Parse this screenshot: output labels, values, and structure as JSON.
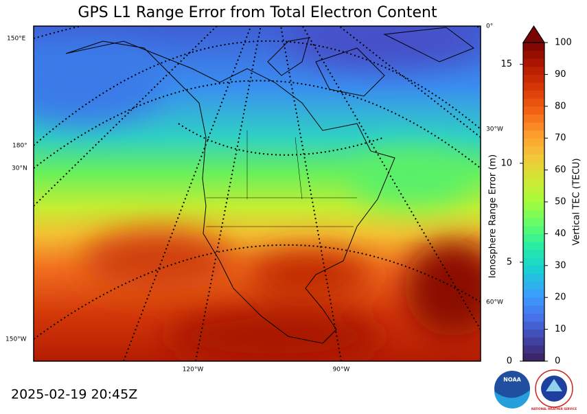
{
  "chart_data": {
    "type": "map",
    "title": "GPS L1 Range Error from Total Electron Content",
    "timestamp": "2025-02-19 20:45Z",
    "graticule_labels": [
      "150°E",
      "180°",
      "30°N",
      "150°W",
      "120°W",
      "90°W",
      "0°",
      "30°W",
      "60°W"
    ],
    "colorbar": {
      "label": "Vertical TEC (TECU)",
      "ylim": [
        0,
        100
      ],
      "yticks": [
        0,
        10,
        20,
        30,
        40,
        50,
        60,
        70,
        80,
        90,
        100
      ],
      "colormap": [
        "#3b1f5b",
        "#4145ab",
        "#4675ed",
        "#39a2fc",
        "#1bcfd4",
        "#24eca6",
        "#61fc6c",
        "#a4fc3b",
        "#d1e834",
        "#f3c63a",
        "#fe9b2d",
        "#f36315",
        "#d93806",
        "#b11901",
        "#7a0402"
      ],
      "y2label": "Ionosphere Range Error (m)",
      "y2lim": [
        0,
        16.1
      ],
      "y2ticks": [
        0,
        5,
        10,
        15
      ]
    },
    "logos": [
      "NOAA",
      "NATIONAL WEATHER SERVICE"
    ]
  }
}
